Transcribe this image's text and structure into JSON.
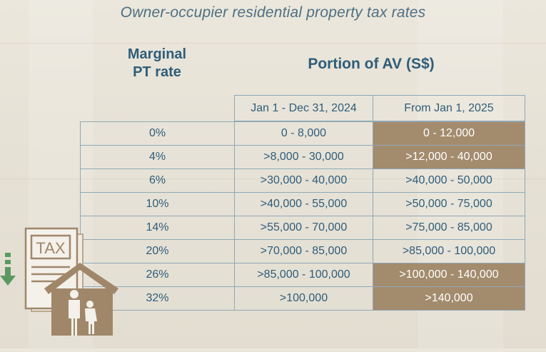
{
  "title": "Owner-occupier residential property tax rates",
  "headers": {
    "rate_line1": "Marginal",
    "rate_line2": "PT rate",
    "av": "Portion of AV (S$)",
    "col_2024": "Jan 1 - Dec 31, 2024",
    "col_2025": "From Jan 1, 2025"
  },
  "rows": [
    {
      "rate": "0%",
      "av2024": "0 - 8,000",
      "av2025": "0 - 12,000",
      "highlight": true
    },
    {
      "rate": "4%",
      "av2024": ">8,000 - 30,000",
      "av2025": ">12,000 - 40,000",
      "highlight": true
    },
    {
      "rate": "6%",
      "av2024": ">30,000 - 40,000",
      "av2025": ">40,000 - 50,000",
      "highlight": false
    },
    {
      "rate": "10%",
      "av2024": ">40,000 - 55,000",
      "av2025": ">50,000 - 75,000",
      "highlight": false
    },
    {
      "rate": "14%",
      "av2024": ">55,000 - 70,000",
      "av2025": ">75,000 - 85,000",
      "highlight": false
    },
    {
      "rate": "20%",
      "av2024": ">70,000 - 85,000",
      "av2025": ">85,000 - 100,000",
      "highlight": false
    },
    {
      "rate": "26%",
      "av2024": ">85,000 - 100,000",
      "av2025": ">100,000 - 140,000",
      "highlight": true
    },
    {
      "rate": "32%",
      "av2024": ">100,000",
      "av2025": ">140,000",
      "highlight": true
    }
  ],
  "icon": {
    "name": "tax-house-family-icon",
    "label": "TAX",
    "colors": {
      "brown": "#a0876a",
      "arrow": "#5a9a62",
      "paper": "#f4f1ea"
    }
  },
  "colors": {
    "text": "#2f5d79",
    "highlight": "#a38b6d",
    "border": "#8fa8b6"
  }
}
